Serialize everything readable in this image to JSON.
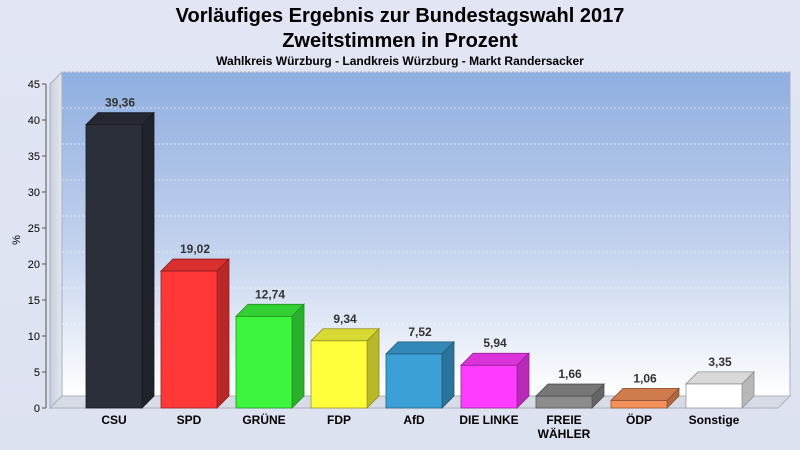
{
  "chart_data": {
    "type": "bar",
    "title": "Vorläufiges Ergebnis zur Bundestagswahl 2017",
    "title_line2": "Zweitstimmen in Prozent",
    "subtitle": "Wahlkreis Würzburg - Landkreis Würzburg - Markt Randersacker",
    "ylabel": "%",
    "xlabel": "",
    "ylim": [
      0,
      45
    ],
    "yticks": [
      0,
      5,
      10,
      15,
      20,
      25,
      30,
      35,
      40,
      45
    ],
    "grid": true,
    "legend": "none",
    "categories": [
      "CSU",
      "SPD",
      "GRÜNE",
      "FDP",
      "AfD",
      "DIE LINKE",
      "FREIE WÄHLER",
      "ÖDP",
      "Sonstige"
    ],
    "category_lines": [
      [
        "CSU"
      ],
      [
        "SPD"
      ],
      [
        "GRÜNE"
      ],
      [
        "FDP"
      ],
      [
        "AfD"
      ],
      [
        "DIE LINKE"
      ],
      [
        "FREIE",
        "WÄHLER"
      ],
      [
        "ÖDP"
      ],
      [
        "Sonstige"
      ]
    ],
    "values": [
      39.36,
      19.02,
      12.74,
      9.34,
      7.52,
      5.94,
      1.66,
      1.06,
      3.35
    ],
    "value_labels": [
      "39,36",
      "19,02",
      "12,74",
      "9,34",
      "7,52",
      "5,94",
      "1,66",
      "1,06",
      "3,35"
    ],
    "colors": [
      "#2b2f3a",
      "#ff3737",
      "#3cf53c",
      "#ffff3c",
      "#3ba0d6",
      "#ff3cff",
      "#8c8c8c",
      "#f5915a",
      "#ffffff"
    ]
  }
}
